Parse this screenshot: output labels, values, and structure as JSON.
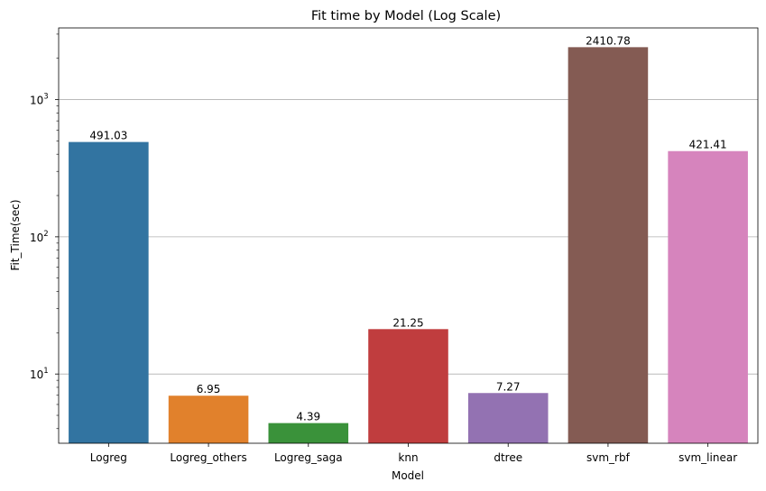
{
  "chart_data": {
    "type": "bar",
    "title": "Fit time by Model (Log Scale)",
    "xlabel": "Model",
    "ylabel": "Fit_Time(sec)",
    "yscale": "log",
    "ylim": [
      3.13,
      3330
    ],
    "grid": "y-major",
    "categories": [
      "Logreg",
      "Logreg_others",
      "Logreg_saga",
      "knn",
      "dtree",
      "svm_rbf",
      "svm_linear"
    ],
    "values": [
      491.03,
      6.95,
      4.39,
      21.25,
      7.27,
      2410.78,
      421.41
    ],
    "data_labels": [
      "491.03",
      "6.95",
      "4.39",
      "21.25",
      "7.27",
      "2410.78",
      "421.41"
    ],
    "colors": [
      "#3274a1",
      "#e1812c",
      "#3a923a",
      "#c03d3e",
      "#9372b2",
      "#845b53",
      "#d684bd"
    ],
    "yticks": [
      {
        "base": "10",
        "exp": "1",
        "value": 10
      },
      {
        "base": "10",
        "exp": "2",
        "value": 100
      },
      {
        "base": "10",
        "exp": "3",
        "value": 1000
      }
    ]
  }
}
